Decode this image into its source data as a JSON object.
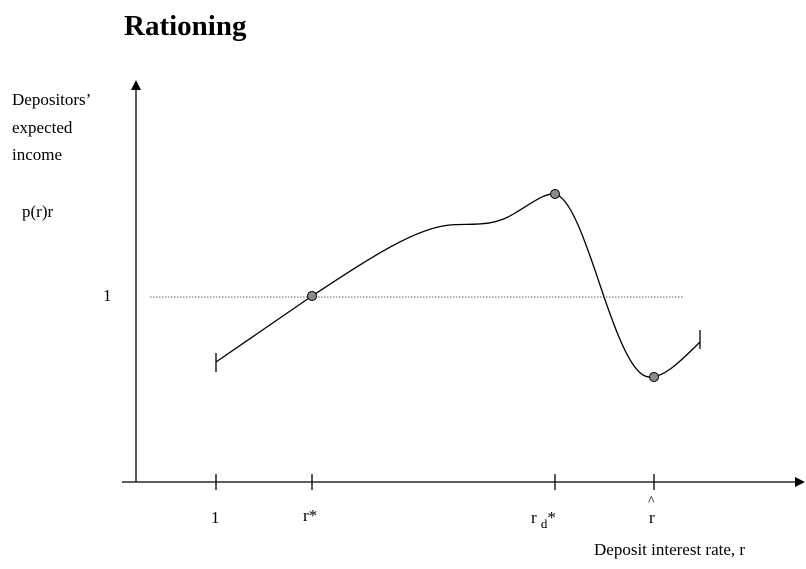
{
  "title": "Rationing",
  "y_axis": {
    "label_lines": [
      "Depositors’",
      "expected",
      "income"
    ],
    "function_label": "p(r)r",
    "reference_tick": "1"
  },
  "x_axis": {
    "label": "Deposit interest rate, r",
    "ticks": {
      "one": "1",
      "r_star": "r*",
      "rd_main": "r",
      "rd_sub": "d",
      "rd_star": "*",
      "hat_mark": "^",
      "r_hat": "r"
    }
  }
}
